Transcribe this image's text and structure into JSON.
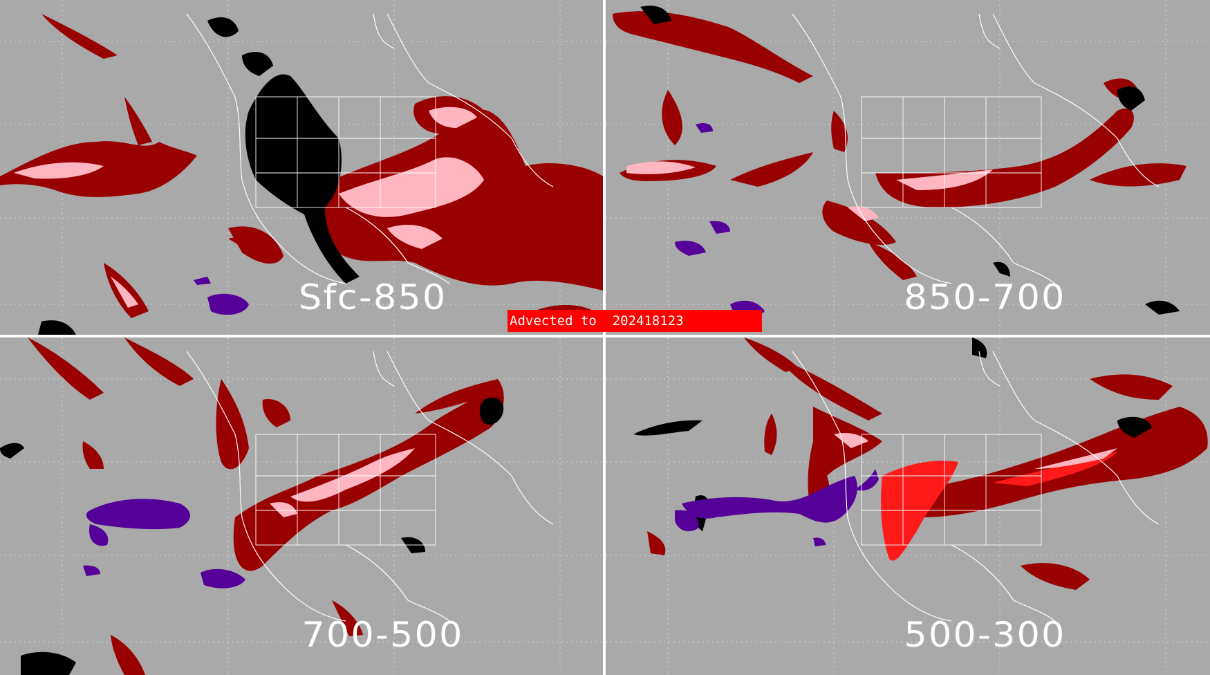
{
  "banner": {
    "text": "Advected to  202418123"
  },
  "panels": [
    {
      "label": "Sfc-850"
    },
    {
      "label": "850-700"
    },
    {
      "label": "700-500"
    },
    {
      "label": "500-300"
    }
  ],
  "colors": {
    "background": "#a9a9a9",
    "dark_red": "#990000",
    "pink": "#ffb6c1",
    "bright_red": "#ff1a1a",
    "purple": "#550099",
    "black": "#000000",
    "map_lines": "#ffffff",
    "banner": "#ff0000"
  },
  "legend_semantics": {
    "icons": [
      "coastline-map",
      "state-borders",
      "cloud-layer-shading"
    ]
  }
}
